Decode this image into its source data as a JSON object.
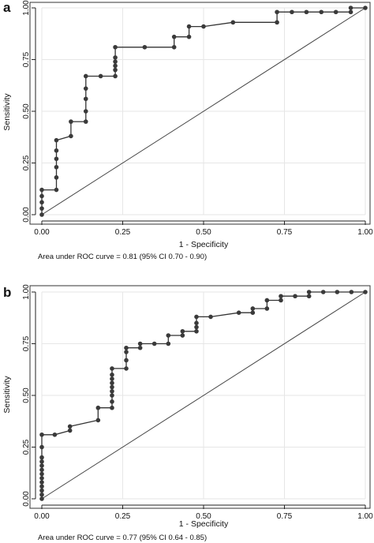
{
  "chart_data": [
    {
      "panel_label": "a",
      "type": "line",
      "xlabel": "1 - Specificity",
      "ylabel": "Sensitivity",
      "xlim": [
        0,
        1
      ],
      "ylim": [
        0,
        1
      ],
      "x_ticks": [
        "0.00",
        "0.25",
        "0.50",
        "0.75",
        "1.00"
      ],
      "y_ticks": [
        "0.00",
        "0.25",
        "0.50",
        "0.75",
        "1.00"
      ],
      "grid": true,
      "note": "Area under ROC curve = 0.81 (95% CI 0.70 - 0.90)",
      "reference_line": [
        [
          0,
          0
        ],
        [
          1,
          1
        ]
      ],
      "series": [
        {
          "x": [
            0,
            0,
            0,
            0,
            0,
            0.045,
            0.045,
            0.045,
            0.045,
            0.045,
            0.045,
            0.09,
            0.09,
            0.136,
            0.136,
            0.136,
            0.136,
            0.136,
            0.182,
            0.227,
            0.227,
            0.227,
            0.227,
            0.227,
            0.227,
            0.318,
            0.409,
            0.409,
            0.455,
            0.455,
            0.5,
            0.591,
            0.727,
            0.727,
            0.773,
            0.818,
            0.864,
            0.909,
            0.955,
            0.955,
            1.0
          ],
          "y": [
            0,
            0.03,
            0.06,
            0.09,
            0.12,
            0.12,
            0.18,
            0.23,
            0.27,
            0.31,
            0.36,
            0.38,
            0.45,
            0.45,
            0.5,
            0.56,
            0.61,
            0.67,
            0.67,
            0.67,
            0.7,
            0.72,
            0.74,
            0.76,
            0.81,
            0.81,
            0.81,
            0.86,
            0.86,
            0.91,
            0.91,
            0.93,
            0.93,
            0.98,
            0.98,
            0.98,
            0.98,
            0.98,
            0.98,
            1.0,
            1.0
          ]
        }
      ]
    },
    {
      "panel_label": "b",
      "type": "line",
      "xlabel": "1 - Specificity",
      "ylabel": "Sensitivity",
      "xlim": [
        0,
        1
      ],
      "ylim": [
        0,
        1
      ],
      "x_ticks": [
        "0.00",
        "0.25",
        "0.50",
        "0.75",
        "1.00"
      ],
      "y_ticks": [
        "0.00",
        "0.25",
        "0.50",
        "0.75",
        "1.00"
      ],
      "grid": true,
      "note": "Area under ROC curve = 0.77 (95% CI 0.64 - 0.85)",
      "reference_line": [
        [
          0,
          0
        ],
        [
          1,
          1
        ]
      ],
      "series": [
        {
          "x": [
            0,
            0,
            0,
            0,
            0,
            0,
            0,
            0,
            0,
            0,
            0,
            0,
            0,
            0.04,
            0.087,
            0.087,
            0.174,
            0.174,
            0.217,
            0.217,
            0.217,
            0.217,
            0.217,
            0.217,
            0.217,
            0.217,
            0.217,
            0.261,
            0.261,
            0.261,
            0.261,
            0.304,
            0.304,
            0.348,
            0.391,
            0.391,
            0.435,
            0.435,
            0.478,
            0.478,
            0.478,
            0.478,
            0.522,
            0.609,
            0.652,
            0.652,
            0.696,
            0.696,
            0.739,
            0.739,
            0.783,
            0.826,
            0.826,
            0.87,
            0.913,
            0.957,
            1.0
          ],
          "y": [
            0,
            0.02,
            0.04,
            0.06,
            0.08,
            0.1,
            0.12,
            0.14,
            0.16,
            0.18,
            0.2,
            0.25,
            0.31,
            0.31,
            0.33,
            0.35,
            0.38,
            0.44,
            0.44,
            0.47,
            0.5,
            0.52,
            0.54,
            0.56,
            0.58,
            0.6,
            0.63,
            0.63,
            0.67,
            0.71,
            0.73,
            0.73,
            0.75,
            0.75,
            0.75,
            0.79,
            0.79,
            0.81,
            0.81,
            0.83,
            0.85,
            0.88,
            0.88,
            0.9,
            0.9,
            0.92,
            0.92,
            0.96,
            0.96,
            0.98,
            0.98,
            0.98,
            1.0,
            1.0,
            1.0,
            1.0,
            1.0
          ]
        }
      ]
    }
  ]
}
